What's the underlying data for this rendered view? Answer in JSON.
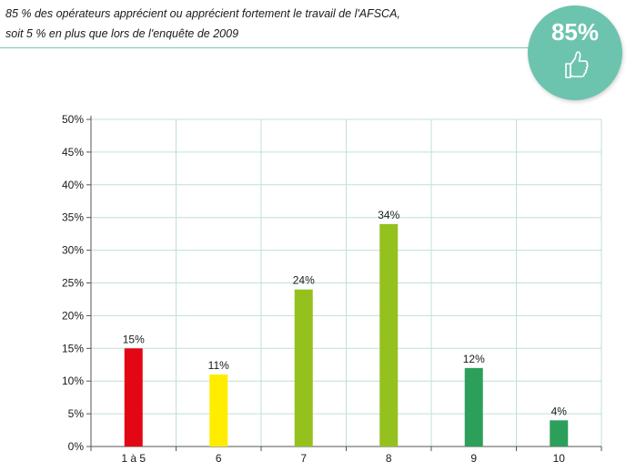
{
  "caption": {
    "line1": "85 % des opérateurs apprécient ou apprécient fortement le travail de l'AFSCA,",
    "line2": "soit 5 % en plus que lors de l'enquête de 2009"
  },
  "badge": {
    "value": "85%",
    "icon": "thumbs-up-icon",
    "color": "#6cc4ae"
  },
  "chart_data": {
    "type": "bar",
    "categories": [
      "1 à 5",
      "6",
      "7",
      "8",
      "9",
      "10"
    ],
    "values": [
      15,
      11,
      24,
      34,
      12,
      4
    ],
    "value_labels": [
      "15%",
      "11%",
      "24%",
      "34%",
      "12%",
      "4%"
    ],
    "colors": [
      "#e30613",
      "#ffed00",
      "#95c11f",
      "#95c11f",
      "#2ca05a",
      "#2ca05a"
    ],
    "ylim": [
      0,
      50
    ],
    "yticks": [
      "0%",
      "5%",
      "10%",
      "15%",
      "20%",
      "25%",
      "30%",
      "35%",
      "40%",
      "45%",
      "50%"
    ],
    "grid": true,
    "legend": false
  }
}
